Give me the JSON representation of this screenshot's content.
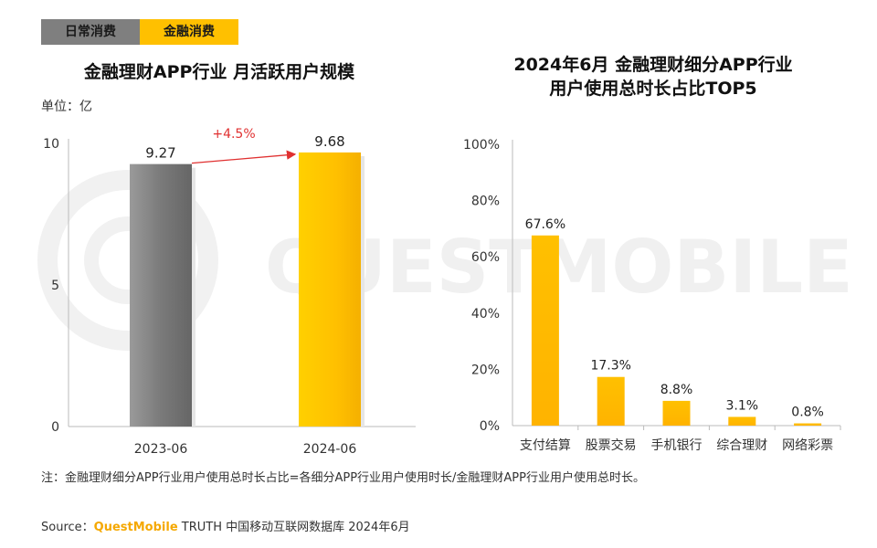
{
  "tabs": [
    {
      "label": "日常消费",
      "active": false
    },
    {
      "label": "金融消费",
      "active": true
    }
  ],
  "watermark": "QUESTMOBILE",
  "colors": {
    "accent": "#ffc000",
    "bar_gray": "#7f7f7f",
    "growth": "#e03030"
  },
  "chart_data": [
    {
      "type": "bar",
      "title": "金融理财APP行业 月活跃用户规模",
      "unit_label": "单位：亿",
      "categories": [
        "2023-06",
        "2024-06"
      ],
      "values": [
        9.27,
        9.68
      ],
      "value_labels": [
        "9.27",
        "9.68"
      ],
      "bar_colors": [
        "#7f7f7f",
        "#ffc000"
      ],
      "yticks": [
        "0",
        "5",
        "10"
      ],
      "ylim": [
        0,
        10
      ],
      "annotation": "+4.5%"
    },
    {
      "type": "bar",
      "title_lines": [
        "2024年6月 金融理财细分APP行业",
        "用户使用总时长占比TOP5"
      ],
      "categories": [
        "支付结算",
        "股票交易",
        "手机银行",
        "综合理财",
        "网络彩票"
      ],
      "values": [
        67.6,
        17.3,
        8.8,
        3.1,
        0.8
      ],
      "value_labels": [
        "67.6%",
        "17.3%",
        "8.8%",
        "3.1%",
        "0.8%"
      ],
      "yticks": [
        "0%",
        "20%",
        "40%",
        "60%",
        "80%",
        "100%"
      ],
      "ylim": [
        0,
        100
      ]
    }
  ],
  "note": "注：金融理财细分APP行业用户使用总时长占比=各细分APP行业用户使用时长/金融理财APP行业用户使用总时长。",
  "source": {
    "prefix": "Source：",
    "brand": "QuestMobile",
    "suffix": " TRUTH 中国移动互联网数据库 2024年6月"
  }
}
